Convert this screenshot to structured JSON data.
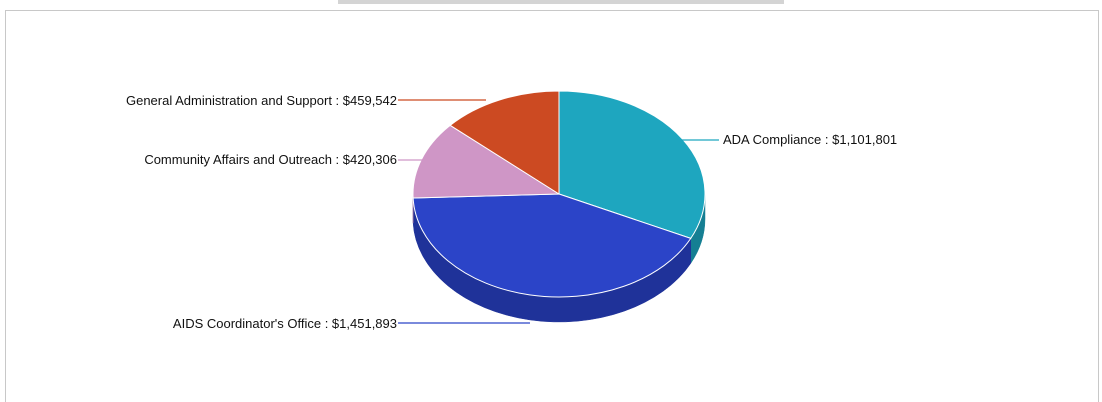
{
  "chart_data": {
    "type": "pie",
    "slices": [
      {
        "label": "ADA Compliance",
        "value": 1101801,
        "display": "$1,101,801",
        "color": "#1ea6bf",
        "side_color": "#157f93"
      },
      {
        "label": "AIDS Coordinator's Office",
        "value": 1451893,
        "display": "$1,451,893",
        "color": "#2b44c8",
        "side_color": "#1f3299"
      },
      {
        "label": "Community Affairs and Outreach",
        "value": 420306,
        "display": "$420,306",
        "color": "#cf96c6",
        "side_color": "#a5739d"
      },
      {
        "label": "General Administration and Support",
        "value": 459542,
        "display": "$459,542",
        "color": "#cc4a22",
        "side_color": "#9c3515"
      }
    ],
    "label_format": "{label} : {display}",
    "legend": "none",
    "three_d": true
  }
}
